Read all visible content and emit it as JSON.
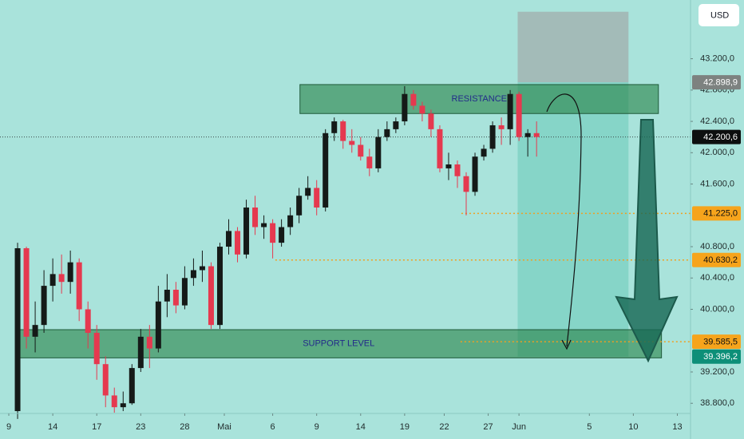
{
  "chart_data": {
    "type": "candlestick",
    "currency": "USD",
    "x": [
      2,
      4,
      6,
      8,
      10,
      12,
      14,
      16,
      18,
      20,
      22,
      24,
      26,
      28,
      30,
      32,
      34,
      36,
      38,
      40,
      42,
      44,
      46,
      48,
      50,
      52,
      54,
      56,
      58,
      60,
      62,
      64,
      66,
      68,
      70,
      72,
      74,
      76,
      78,
      80,
      82,
      84,
      86,
      88,
      90,
      92,
      94,
      96,
      98,
      100,
      102,
      104,
      106,
      108,
      110,
      112,
      114,
      116,
      118,
      120
    ],
    "open": [
      38700,
      40780,
      39650,
      39800,
      40300,
      40450,
      40350,
      40600,
      40000,
      39700,
      39300,
      38900,
      38750,
      38800,
      39250,
      39650,
      39500,
      40100,
      40250,
      40050,
      40400,
      40500,
      40550,
      39800,
      40800,
      41000,
      40700,
      41300,
      41050,
      41100,
      40850,
      41050,
      41200,
      41450,
      41550,
      41300,
      42250,
      42400,
      42150,
      42100,
      41950,
      41800,
      42200,
      42300,
      42400,
      42750,
      42600,
      42500,
      42300,
      41800,
      41850,
      41700,
      41500,
      41950,
      42050,
      42350,
      42300,
      42750,
      42200,
      42250
    ],
    "high": [
      40850,
      40800,
      40100,
      40500,
      40650,
      40700,
      40750,
      40650,
      40100,
      39800,
      39400,
      39000,
      38950,
      39300,
      39750,
      39800,
      40300,
      40450,
      40350,
      40550,
      40650,
      40750,
      40600,
      40850,
      41150,
      41050,
      41400,
      41450,
      41200,
      41150,
      41150,
      41300,
      41550,
      41700,
      41650,
      42300,
      42450,
      42420,
      42300,
      42200,
      42050,
      42300,
      42400,
      42450,
      42850,
      42800,
      42650,
      42550,
      42350,
      42000,
      41900,
      41750,
      42000,
      42100,
      42400,
      42450,
      42800,
      42780,
      42300,
      42400
    ],
    "low": [
      38600,
      39500,
      39450,
      39700,
      40100,
      40200,
      40200,
      39850,
      39500,
      39100,
      38750,
      38680,
      38700,
      38780,
      39200,
      39250,
      39450,
      39900,
      39950,
      40000,
      40300,
      40350,
      39750,
      39750,
      40700,
      40600,
      40650,
      40950,
      40900,
      40650,
      40800,
      40950,
      41100,
      41400,
      41200,
      41250,
      42150,
      42050,
      42000,
      41900,
      41700,
      41750,
      42150,
      42250,
      42350,
      42550,
      42400,
      42200,
      41750,
      41650,
      41550,
      41200,
      41450,
      41900,
      42000,
      42100,
      42100,
      42150,
      41950,
      41950
    ],
    "close": [
      40780,
      39650,
      39800,
      40300,
      40450,
      40350,
      40600,
      40000,
      39700,
      39300,
      38900,
      38750,
      38800,
      39250,
      39650,
      39500,
      40100,
      40250,
      40050,
      40400,
      40500,
      40550,
      39800,
      40800,
      41000,
      40700,
      41300,
      41050,
      41100,
      40850,
      41050,
      41200,
      41450,
      41550,
      41300,
      42250,
      42400,
      42150,
      42100,
      41950,
      41800,
      42200,
      42300,
      42400,
      42750,
      42600,
      42500,
      42300,
      41800,
      41850,
      41700,
      41500,
      41950,
      42050,
      42350,
      42300,
      42750,
      42200,
      42250,
      42200.6
    ],
    "up_color": "#151a18",
    "down_color": "#e5394f",
    "last_price_label": "42.200,6",
    "xlim": [
      -2,
      155
    ],
    "ylim": [
      38670,
      43950
    ],
    "xticks": [
      {
        "value": 0,
        "label": "9"
      },
      {
        "value": 10,
        "label": "14"
      },
      {
        "value": 20,
        "label": "17"
      },
      {
        "value": 30,
        "label": "23"
      },
      {
        "value": 40,
        "label": "28"
      },
      {
        "value": 49,
        "label": "Mai"
      },
      {
        "value": 60,
        "label": "6"
      },
      {
        "value": 70,
        "label": "9"
      },
      {
        "value": 80,
        "label": "14"
      },
      {
        "value": 90,
        "label": "19"
      },
      {
        "value": 99,
        "label": "22"
      },
      {
        "value": 109,
        "label": "27"
      },
      {
        "value": 116,
        "label": "Jun"
      },
      {
        "value": 132,
        "label": "5"
      },
      {
        "value": 142,
        "label": "10"
      },
      {
        "value": 152,
        "label": "13"
      }
    ],
    "yticks": [
      {
        "value": 43200,
        "label": "43.200,0"
      },
      {
        "value": 42800,
        "label": "42.800,0"
      },
      {
        "value": 42400,
        "label": "42.400,0"
      },
      {
        "value": 42000,
        "label": "42.000,0"
      },
      {
        "value": 41600,
        "label": "41.600,0"
      },
      {
        "value": 40800,
        "label": "40.800,0"
      },
      {
        "value": 40400,
        "label": "40.400,0"
      },
      {
        "value": 40000,
        "label": "40.000,0"
      },
      {
        "value": 39200,
        "label": "39.200,0"
      },
      {
        "value": 38800,
        "label": "38.800,0"
      }
    ],
    "zones": [
      {
        "label": "RESISTANCE",
        "top": 42870,
        "bottom": 42500,
        "x_start": 66.2,
        "x_end": 147.7
      },
      {
        "label": "SUPPORT LEVEL",
        "top": 39740,
        "bottom": 39380,
        "x_start": 1.6,
        "x_end": 148.4
      }
    ],
    "levels": [
      {
        "value": 41225,
        "label": "41.225,0",
        "x_start": 102.9
      },
      {
        "value": 40630.2,
        "label": "40.630,2",
        "x_start": 60.6
      },
      {
        "value": 39585.5,
        "label": "39.585,5",
        "x_start": 102.7
      }
    ],
    "position": {
      "stop": 43800,
      "entry": {
        "value": 42898.9,
        "label": "42.898,9"
      },
      "target": {
        "value": 39396.2,
        "label": "39.396,2"
      },
      "x_start": 115.7,
      "x_end": 140.9
    }
  }
}
